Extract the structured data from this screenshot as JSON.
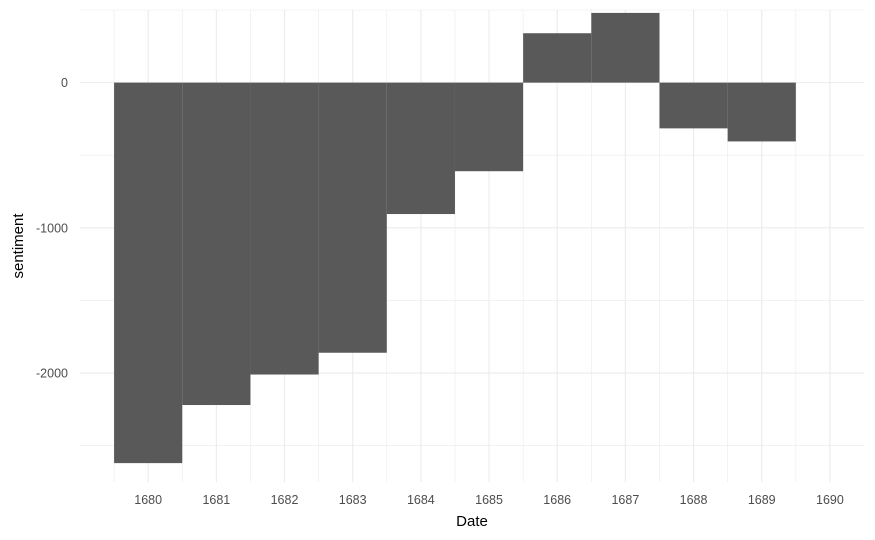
{
  "chart_data": {
    "type": "bar",
    "xlabel": "Date",
    "ylabel": "sentiment",
    "x": [
      1680,
      1681,
      1682,
      1683,
      1684,
      1685,
      1686,
      1687,
      1688,
      1689
    ],
    "values": [
      -2620,
      -2220,
      -2010,
      -1860,
      -905,
      -610,
      340,
      480,
      -315,
      -405
    ],
    "x_ticks": [
      1680,
      1681,
      1682,
      1683,
      1684,
      1685,
      1686,
      1687,
      1688,
      1689,
      1690
    ],
    "y_ticks": [
      0,
      -1000,
      -2000
    ],
    "y_tick_labels": [
      "0",
      "-1000",
      "-2000"
    ],
    "xlim": [
      1679,
      1690.5
    ],
    "ylim": [
      -2750,
      500
    ],
    "bar_color": "#595959",
    "grid_color": "#ebebeb",
    "grid": true,
    "legend": "none"
  }
}
